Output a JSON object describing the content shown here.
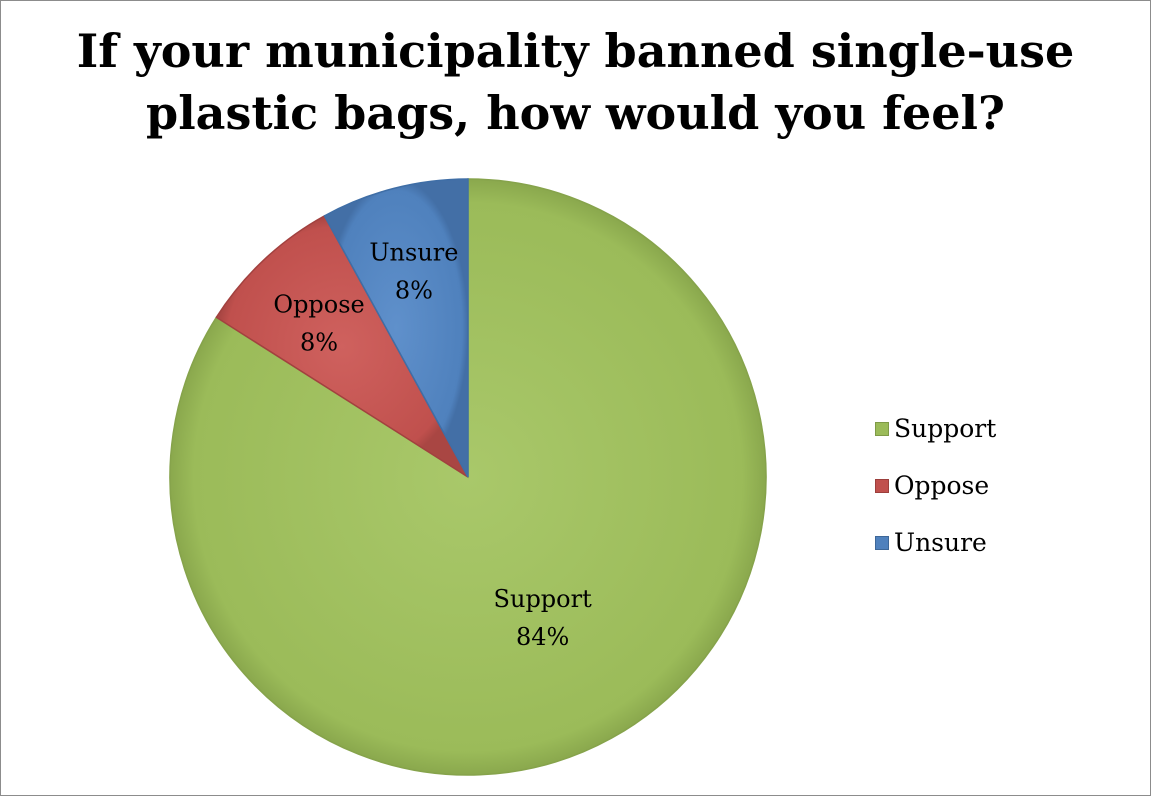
{
  "chart_data": {
    "type": "pie",
    "title": "If your municipality banned single-use plastic bags, how would you feel?",
    "categories": [
      "Support",
      "Oppose",
      "Unsure"
    ],
    "values": [
      84,
      8,
      8
    ],
    "labels": [
      {
        "name": "Support",
        "value_text": "84%"
      },
      {
        "name": "Oppose",
        "value_text": "8%"
      },
      {
        "name": "Unsure",
        "value_text": "8%"
      }
    ],
    "colors": [
      "#9bbb59",
      "#c0504d",
      "#4f81bd"
    ],
    "legend_position": "right"
  }
}
